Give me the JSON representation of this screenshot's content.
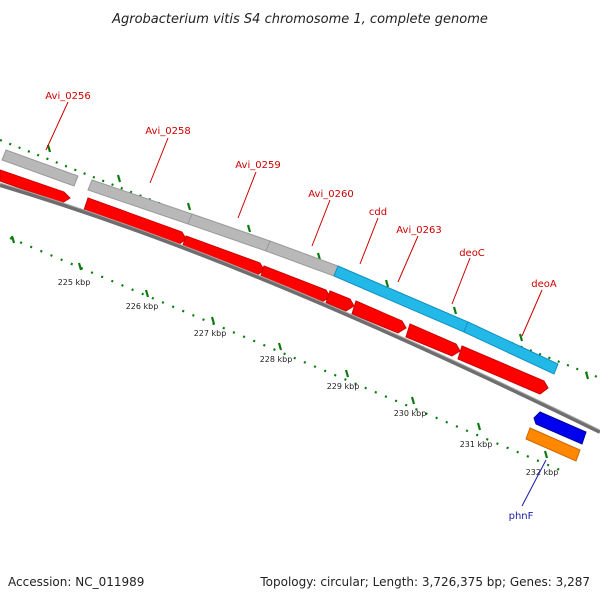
{
  "title": "Agrobacterium vitis S4 chromosome 1, complete genome",
  "footer": {
    "accession": "Accession: NC_011989",
    "summary": "Topology: circular; Length: 3,726,375 bp; Genes: 3,287"
  },
  "scale_labels": [
    "225 kbp",
    "226 kbp",
    "227 kbp",
    "228 kbp",
    "229 kbp",
    "230 kbp",
    "231 kbp",
    "232 kbp"
  ],
  "gene_labels": [
    "Avi_0256",
    "Avi_0258",
    "Avi_0259",
    "Avi_0260",
    "cdd",
    "Avi_0263",
    "deoC",
    "deoA",
    "phnF"
  ],
  "colors": {
    "cds": "#ff0000",
    "gene": "#b8b8b8",
    "nucleoside_gene": "#22b8e8",
    "regulator_cds": "#0000ee",
    "regulator_gene": "#ff8800",
    "backbone": "#888888",
    "ticks": "#006600",
    "label": "#cc0000",
    "label_alt": "#1a1aa6"
  }
}
